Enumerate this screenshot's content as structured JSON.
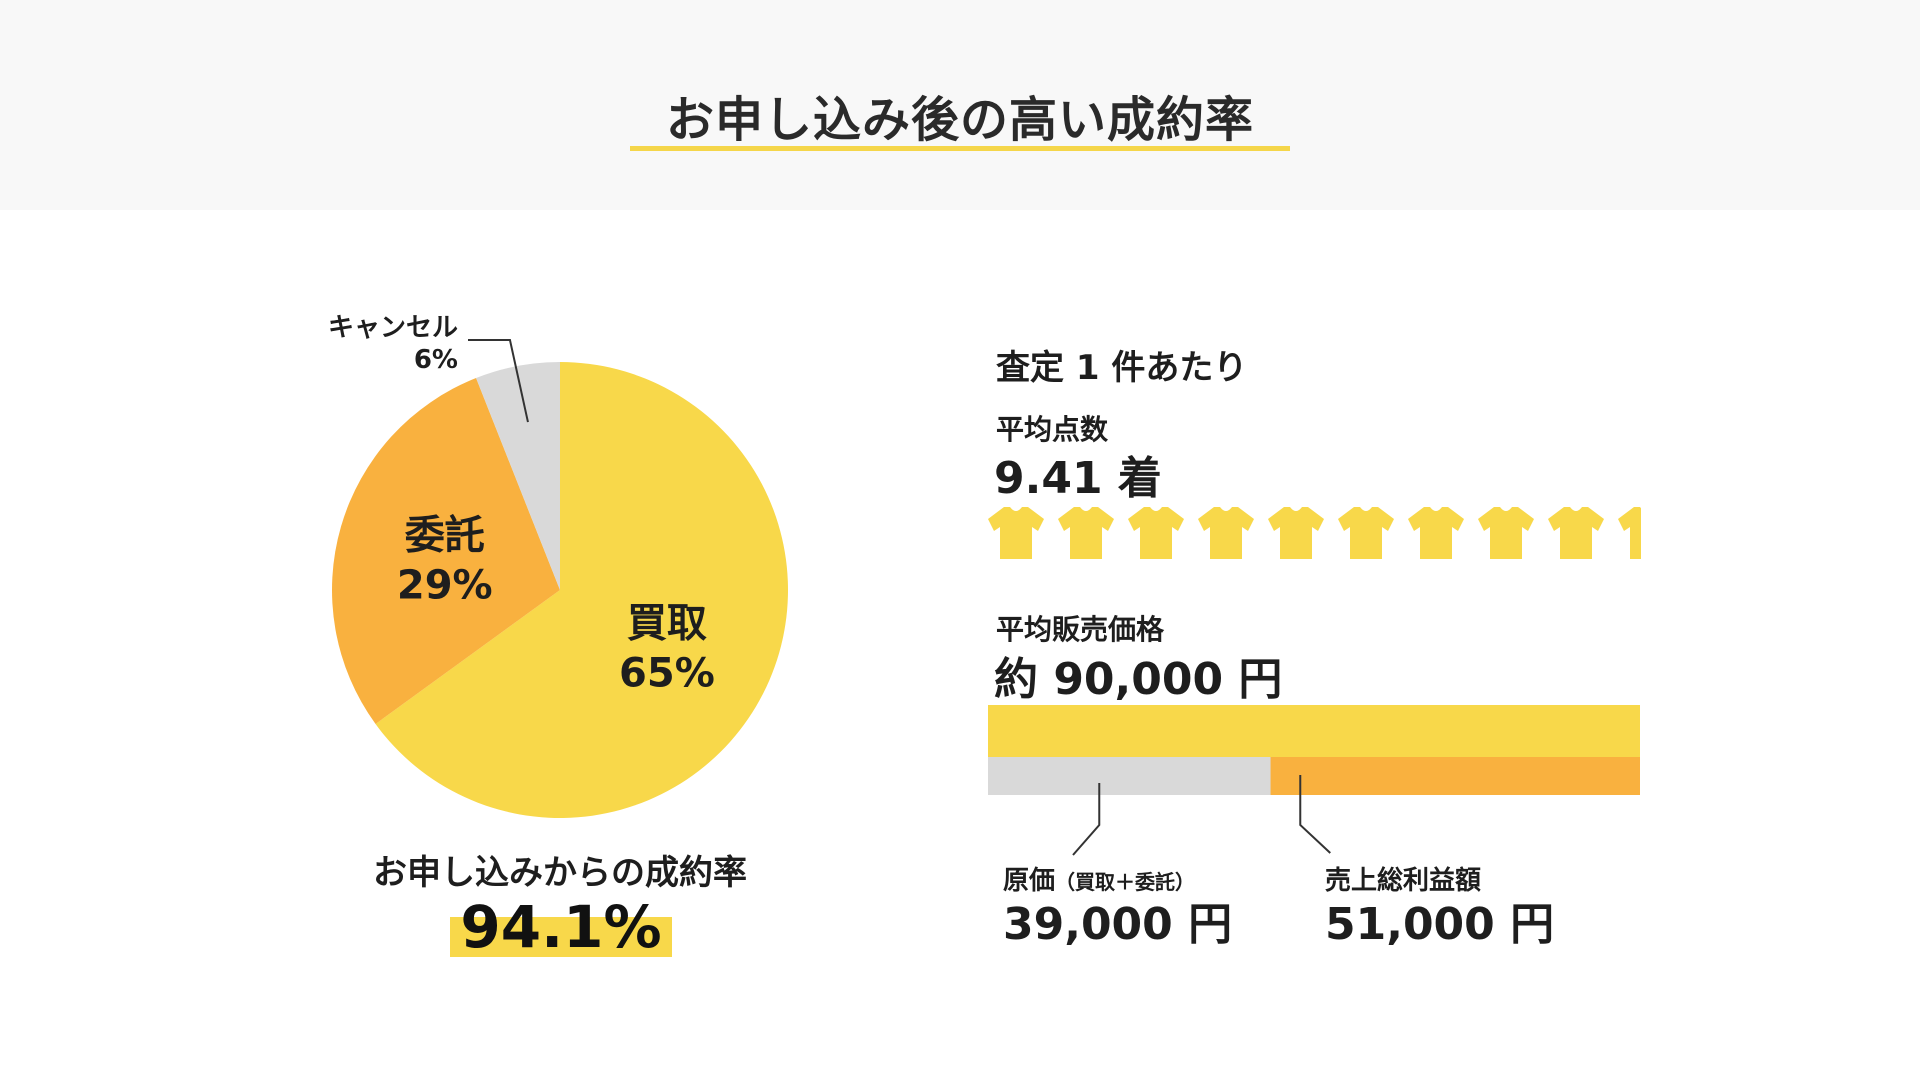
{
  "header": {
    "title": "お申し込み後の高い成約率"
  },
  "chart_data": [
    {
      "type": "pie",
      "title": "",
      "slices": [
        {
          "label": "買取",
          "value": 65,
          "display": "65%",
          "color": "#f8d84a"
        },
        {
          "label": "委託",
          "value": 29,
          "display": "29%",
          "color": "#f9b13f"
        },
        {
          "label": "キャンセル",
          "value": 6,
          "display": "6%",
          "color": "#d9d9d9"
        }
      ]
    },
    {
      "type": "bar",
      "title": "平均販売価格",
      "stacked": true,
      "total": {
        "label": "約 90,000 円",
        "value": 90000,
        "color": "#f8d84a"
      },
      "series": [
        {
          "name": "原価（買取＋委託）",
          "value": 39000,
          "color": "#d9d9d9"
        },
        {
          "name": "売上総利益額",
          "value": 51000,
          "color": "#f9b13f"
        }
      ]
    }
  ],
  "rate": {
    "label": "お申し込みからの成約率",
    "value": "94.1%"
  },
  "per_assessment": {
    "heading": "査定 1 件あたり",
    "avg_items": {
      "label": "平均点数",
      "value_text": "9.41 着",
      "value": 9.41,
      "icon": "tshirt-icon",
      "color": "#f8d84a"
    },
    "avg_price": {
      "label": "平均販売価格",
      "value_text": "約 90,000 円"
    },
    "cost": {
      "label": "原価",
      "sub": "（買取＋委託）",
      "value_text": "39,000 円"
    },
    "profit": {
      "label": "売上総利益額",
      "value_text": "51,000 円"
    }
  },
  "colors": {
    "accent": "#f8d84a",
    "orange": "#f9b13f",
    "gray": "#d9d9d9",
    "header_bg": "#f8f8f8"
  }
}
